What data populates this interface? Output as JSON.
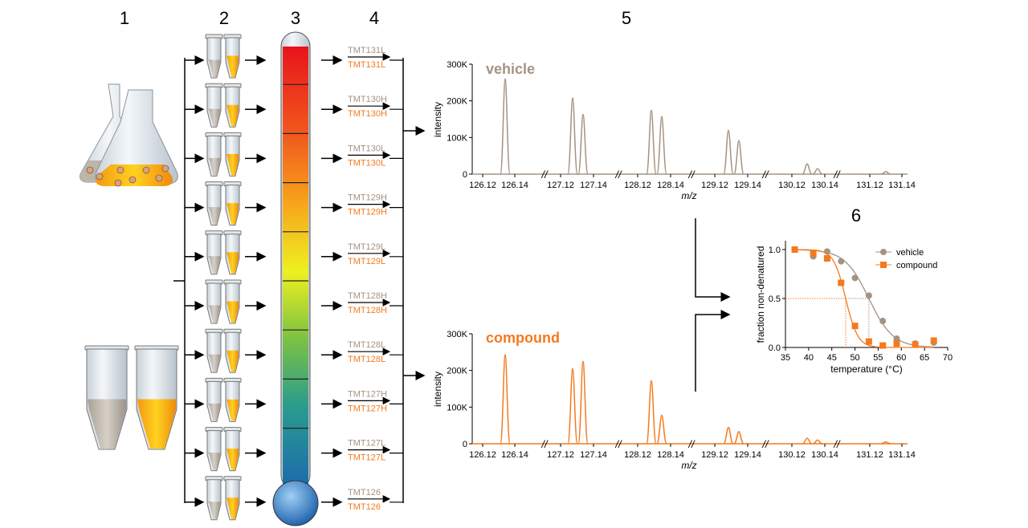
{
  "step_numbers": [
    "1",
    "2",
    "3",
    "4",
    "5",
    "6"
  ],
  "temperatures": [
    "67",
    "63",
    "59",
    "56",
    "53",
    "50",
    "47",
    "44",
    "41",
    "37"
  ],
  "tmt_labels": [
    "TMT131L",
    "TMT130H",
    "TMT130L",
    "TMT129H",
    "TMT129L",
    "TMT128H",
    "TMT128L",
    "TMT127H",
    "TMT127L",
    "TMT126"
  ],
  "colors": {
    "vehicle": "#a39382",
    "compound": "#f47a1f"
  },
  "spectra": [
    {
      "title": "vehicle",
      "ylabel": "intensity",
      "xlabel": "m/z",
      "yticks": [
        "0",
        "100K",
        "200K",
        "300K"
      ],
      "xticks": [
        "126.12",
        "126.14",
        "127.12",
        "127.14",
        "128.12",
        "128.14",
        "129.12",
        "129.14",
        "130.12",
        "130.14",
        "131.12",
        "131.14"
      ],
      "peaks": [
        260,
        208,
        163,
        174,
        157,
        120,
        92,
        28,
        15,
        7
      ]
    },
    {
      "title": "compound",
      "ylabel": "intensity",
      "xlabel": "m/z",
      "yticks": [
        "0",
        "100K",
        "200K",
        "300K"
      ],
      "xticks": [
        "126.12",
        "126.14",
        "127.12",
        "127.14",
        "128.12",
        "128.14",
        "129.12",
        "129.14",
        "130.12",
        "130.14",
        "131.12",
        "131.14"
      ],
      "peaks": [
        243,
        205,
        225,
        172,
        78,
        45,
        33,
        15,
        10,
        5
      ]
    }
  ],
  "chart_data": {
    "type": "scatter",
    "xlabel": "temperature (°C)",
    "ylabel": "fraction non-denatured",
    "xlim": [
      35,
      70
    ],
    "ylim": [
      0,
      1
    ],
    "xticks": [
      "35",
      "40",
      "45",
      "50",
      "55",
      "60",
      "65",
      "70"
    ],
    "yticks": [
      "0.0",
      "0.5",
      "1.0"
    ],
    "legend_position": "top-right",
    "x": [
      37,
      41,
      44,
      47,
      50,
      53,
      56,
      59,
      63,
      67
    ],
    "series": [
      {
        "name": "vehicle",
        "values": [
          1.0,
          0.93,
          0.98,
          0.88,
          0.71,
          0.53,
          0.27,
          0.09,
          0.04,
          0.05
        ],
        "tm": 53
      },
      {
        "name": "compound",
        "values": [
          1.0,
          0.96,
          0.91,
          0.66,
          0.22,
          0.06,
          0.02,
          0.04,
          0.03,
          0.07
        ],
        "tm": 48
      }
    ]
  }
}
